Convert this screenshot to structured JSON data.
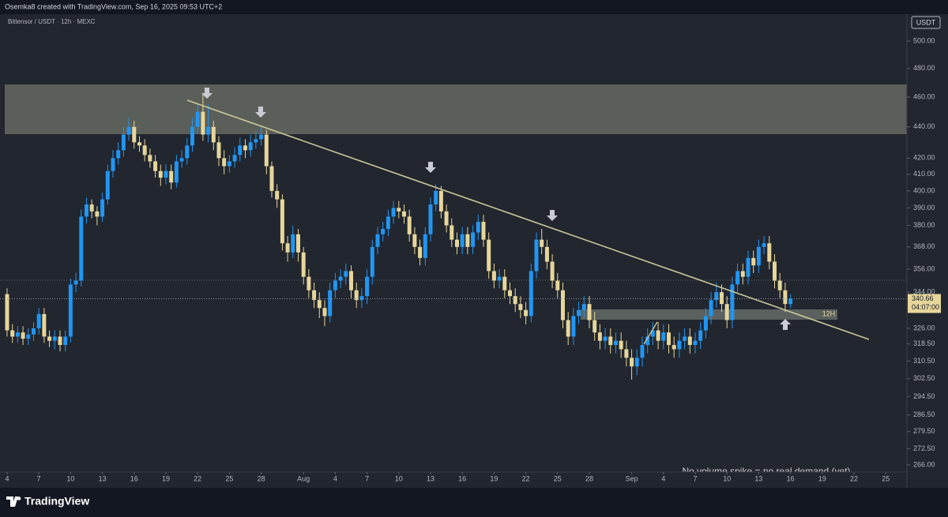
{
  "header": {
    "attribution": "Osemka8 created with TradingView.com, Sep 16, 2025 09:53 UTC+2",
    "symbol": "Bittensor / USDT · 12h · MEXC",
    "currency": "USDT"
  },
  "chart_data": {
    "type": "candlestick",
    "x": [
      0,
      0.5,
      1,
      1.5,
      2,
      2.5,
      3,
      3.5,
      4,
      4.5,
      5,
      5.5,
      6,
      6.5,
      7,
      7.5,
      8,
      8.5,
      9,
      9.5,
      10,
      10.5,
      11,
      11.5,
      12,
      12.5,
      13,
      13.5,
      14,
      14.5,
      15,
      15.5,
      16,
      16.5,
      17,
      17.5,
      18,
      18.5,
      19,
      19.5,
      20,
      20.5,
      21,
      21.5,
      22,
      22.5,
      23,
      23.5,
      24,
      24.5,
      25,
      25.5,
      26,
      26.5,
      27,
      27.5,
      28,
      28.5,
      29,
      29.5,
      30,
      30.5,
      31,
      31.5,
      32,
      32.5,
      33,
      33.5,
      34,
      34.5,
      35,
      35.5,
      36,
      36.5,
      37,
      37.5,
      38,
      38.5,
      39,
      39.5,
      40,
      40.5,
      41,
      41.5,
      42,
      42.5,
      43,
      43.5,
      44,
      44.5,
      45,
      45.5,
      46,
      46.5,
      47,
      47.5,
      48,
      48.5,
      49,
      49.5,
      50,
      50.5,
      51,
      51.5,
      52,
      52.5,
      53,
      53.5,
      54,
      54.5,
      55,
      55.5,
      56,
      56.5,
      57,
      57.5,
      58,
      58.5,
      59,
      59.5,
      60,
      60.5,
      61,
      61.5,
      62,
      62.5,
      63,
      63.5,
      64,
      64.5,
      65,
      65.5,
      66,
      66.5,
      67,
      67.5,
      68,
      68.5,
      69,
      69.5,
      70,
      70.5,
      71,
      71.5,
      72,
      72.5,
      73,
      73.5,
      74
    ],
    "open": [
      343,
      325,
      322,
      324,
      321,
      323,
      326,
      333,
      322,
      320,
      322,
      318,
      322,
      348,
      350,
      385,
      392,
      388,
      385,
      395,
      412,
      420,
      425,
      435,
      440,
      430,
      428,
      422,
      418,
      412,
      408,
      412,
      405,
      418,
      420,
      428,
      440,
      450,
      435,
      440,
      430,
      420,
      415,
      418,
      422,
      428,
      425,
      430,
      432,
      435,
      415,
      400,
      395,
      370,
      365,
      375,
      365,
      352,
      345,
      340,
      336,
      332,
      345,
      350,
      352,
      355,
      345,
      340,
      342,
      352,
      368,
      375,
      378,
      385,
      390,
      388,
      385,
      375,
      368,
      362,
      375,
      392,
      400,
      388,
      380,
      372,
      368,
      375,
      368,
      376,
      382,
      372,
      355,
      350,
      352,
      345,
      342,
      338,
      335,
      332,
      355,
      372,
      368,
      360,
      350,
      345,
      330,
      322,
      332,
      335,
      338,
      330,
      324,
      320,
      322,
      318,
      320,
      316,
      312,
      308,
      312,
      318,
      322,
      325,
      320,
      324,
      318,
      316,
      320,
      322,
      318,
      320,
      325,
      332,
      340,
      344,
      338,
      330,
      348,
      355,
      352,
      362,
      358,
      368,
      370,
      360,
      350,
      345,
      338
    ],
    "high": [
      346,
      328,
      327,
      327,
      326,
      329,
      336,
      336,
      325,
      325,
      325,
      325,
      351,
      354,
      389,
      396,
      395,
      391,
      399,
      416,
      425,
      430,
      440,
      446,
      444,
      434,
      432,
      426,
      422,
      416,
      416,
      416,
      422,
      425,
      433,
      446,
      456,
      462,
      455,
      444,
      434,
      425,
      422,
      427,
      433,
      432,
      435,
      437,
      440,
      438,
      418,
      404,
      398,
      374,
      380,
      378,
      368,
      356,
      349,
      344,
      340,
      349,
      354,
      356,
      359,
      358,
      349,
      346,
      356,
      372,
      379,
      382,
      389,
      394,
      394,
      392,
      389,
      379,
      372,
      379,
      396,
      404,
      403,
      392,
      384,
      376,
      379,
      379,
      380,
      386,
      386,
      376,
      359,
      356,
      356,
      349,
      346,
      342,
      339,
      359,
      376,
      378,
      372,
      364,
      354,
      349,
      334,
      336,
      339,
      342,
      342,
      334,
      328,
      326,
      326,
      324,
      324,
      320,
      316,
      316,
      322,
      326,
      329,
      329,
      328,
      328,
      322,
      324,
      326,
      326,
      324,
      329,
      336,
      344,
      349,
      348,
      342,
      352,
      359,
      359,
      366,
      366,
      372,
      374,
      374,
      364,
      354,
      349,
      343
    ],
    "low": [
      322,
      319,
      319,
      318,
      318,
      320,
      323,
      319,
      317,
      316,
      315,
      315,
      319,
      344,
      347,
      381,
      384,
      380,
      382,
      392,
      408,
      416,
      421,
      431,
      426,
      424,
      418,
      414,
      408,
      403,
      404,
      401,
      402,
      414,
      416,
      424,
      436,
      431,
      430,
      425,
      415,
      410,
      411,
      414,
      418,
      420,
      421,
      426,
      428,
      410,
      396,
      390,
      366,
      360,
      362,
      360,
      348,
      341,
      336,
      331,
      327,
      329,
      341,
      346,
      348,
      341,
      336,
      336,
      338,
      348,
      364,
      371,
      374,
      381,
      384,
      381,
      371,
      364,
      358,
      358,
      371,
      388,
      384,
      376,
      368,
      364,
      364,
      364,
      364,
      372,
      368,
      351,
      346,
      346,
      341,
      338,
      334,
      331,
      328,
      329,
      351,
      364,
      356,
      346,
      341,
      326,
      318,
      318,
      328,
      331,
      326,
      320,
      316,
      316,
      314,
      314,
      312,
      308,
      302,
      304,
      308,
      314,
      318,
      316,
      316,
      314,
      312,
      312,
      316,
      314,
      314,
      316,
      321,
      328,
      336,
      334,
      326,
      326,
      344,
      348,
      348,
      354,
      354,
      364,
      356,
      346,
      341,
      334,
      336
    ],
    "close": [
      325,
      322,
      324,
      321,
      323,
      326,
      333,
      322,
      320,
      322,
      318,
      322,
      348,
      350,
      385,
      392,
      388,
      385,
      395,
      412,
      420,
      425,
      435,
      440,
      430,
      428,
      422,
      418,
      412,
      408,
      412,
      405,
      418,
      420,
      428,
      440,
      450,
      435,
      440,
      430,
      420,
      415,
      418,
      422,
      428,
      425,
      430,
      432,
      435,
      415,
      400,
      395,
      370,
      365,
      375,
      365,
      352,
      345,
      340,
      336,
      332,
      345,
      350,
      352,
      355,
      345,
      340,
      342,
      352,
      368,
      375,
      378,
      385,
      390,
      388,
      385,
      375,
      368,
      362,
      375,
      392,
      400,
      388,
      380,
      372,
      368,
      375,
      368,
      376,
      382,
      372,
      355,
      350,
      352,
      345,
      342,
      338,
      335,
      332,
      355,
      372,
      368,
      360,
      350,
      345,
      330,
      322,
      332,
      335,
      338,
      330,
      324,
      320,
      322,
      318,
      320,
      316,
      312,
      308,
      312,
      318,
      322,
      325,
      320,
      324,
      318,
      316,
      320,
      322,
      318,
      320,
      325,
      332,
      340,
      344,
      338,
      330,
      348,
      355,
      352,
      362,
      358,
      368,
      370,
      360,
      350,
      345,
      338,
      340.66
    ],
    "up_color": "#2196f3",
    "down_color": "#e6d69a",
    "log_scale": true,
    "ylim": [
      263.2,
      520.4
    ],
    "yticks": [
      {
        "value": 500,
        "label": "500.00"
      },
      {
        "value": 480,
        "label": "480.00"
      },
      {
        "value": 460,
        "label": "460.00"
      },
      {
        "value": 440,
        "label": "440.00"
      },
      {
        "value": 420,
        "label": "420.00"
      },
      {
        "value": 410,
        "label": "410.00"
      },
      {
        "value": 400,
        "label": "400.00"
      },
      {
        "value": 390,
        "label": "390.00"
      },
      {
        "value": 380,
        "label": "380.00"
      },
      {
        "value": 368,
        "label": "368.00"
      },
      {
        "value": 356,
        "label": "356.00"
      },
      {
        "value": 344,
        "label": "344.00"
      },
      {
        "value": 326,
        "label": "326.00"
      },
      {
        "value": 318.5,
        "label": "318.50"
      },
      {
        "value": 310.5,
        "label": "310.50"
      },
      {
        "value": 302.5,
        "label": "302.50"
      },
      {
        "value": 294.5,
        "label": "294.50"
      },
      {
        "value": 286.5,
        "label": "286.50"
      },
      {
        "value": 279.5,
        "label": "279.50"
      },
      {
        "value": 272.5,
        "label": "272.50"
      },
      {
        "value": 266,
        "label": "266.00"
      }
    ],
    "xlim": [
      -0.67,
      85.0
    ],
    "xticks": [
      {
        "value": 0,
        "label": "4"
      },
      {
        "value": 3,
        "label": "7"
      },
      {
        "value": 6,
        "label": "10"
      },
      {
        "value": 9,
        "label": "13"
      },
      {
        "value": 12,
        "label": "16"
      },
      {
        "value": 15,
        "label": "19"
      },
      {
        "value": 18,
        "label": "22"
      },
      {
        "value": 21,
        "label": "25"
      },
      {
        "value": 24,
        "label": "28"
      },
      {
        "value": 28,
        "label": "Aug"
      },
      {
        "value": 31,
        "label": "4"
      },
      {
        "value": 34,
        "label": "7"
      },
      {
        "value": 37,
        "label": "10"
      },
      {
        "value": 40,
        "label": "13"
      },
      {
        "value": 43,
        "label": "16"
      },
      {
        "value": 46,
        "label": "19"
      },
      {
        "value": 49,
        "label": "22"
      },
      {
        "value": 52,
        "label": "25"
      },
      {
        "value": 55,
        "label": "28"
      },
      {
        "value": 59,
        "label": "Sep"
      },
      {
        "value": 62,
        "label": "4"
      },
      {
        "value": 65,
        "label": "7"
      },
      {
        "value": 68,
        "label": "10"
      },
      {
        "value": 71,
        "label": "13"
      },
      {
        "value": 74,
        "label": "16"
      },
      {
        "value": 77,
        "label": "19"
      },
      {
        "value": 80,
        "label": "22"
      },
      {
        "value": 83,
        "label": "25"
      }
    ],
    "countdown": "04:07:00",
    "zone_label": "12H",
    "note": "No volume spike = no real demand (yet)"
  },
  "footer": {
    "brand": "TradingView"
  }
}
